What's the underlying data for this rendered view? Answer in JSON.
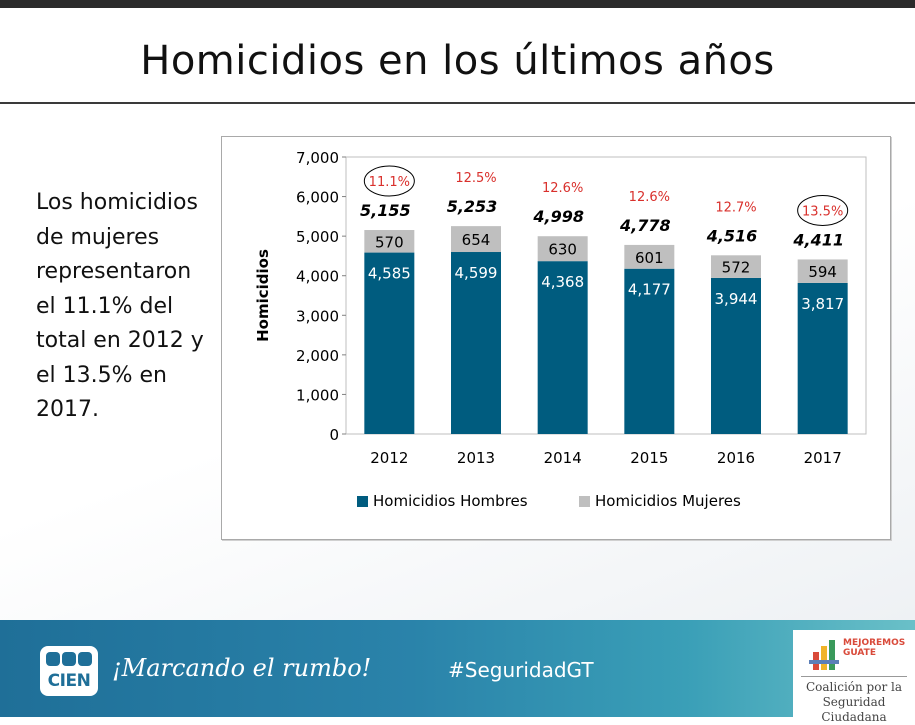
{
  "slide": {
    "title": "Homicidios en los últimos años",
    "side_text": "Los homicidios de mujeres representaron el 11.1% del total en 2012 y el 13.5% en 2017."
  },
  "chart_data": {
    "type": "bar",
    "stacked": true,
    "title": "",
    "ylabel": "Homicidios",
    "xlabel": "",
    "ylim": [
      0,
      7000
    ],
    "yticks": [
      "0",
      "1,000",
      "2,000",
      "3,000",
      "4,000",
      "5,000",
      "6,000",
      "7,000"
    ],
    "categories": [
      "2012",
      "2013",
      "2014",
      "2015",
      "2016",
      "2017"
    ],
    "series": [
      {
        "name": "Homicidios Hombres",
        "color": "#005c7f",
        "values": [
          4585,
          4599,
          4368,
          4177,
          3944,
          3817
        ],
        "labels": [
          "4,585",
          "4,599",
          "4,368",
          "4,177",
          "3,944",
          "3,817"
        ]
      },
      {
        "name": "Homicidios Mujeres",
        "color": "#bfbfbf",
        "values": [
          570,
          654,
          630,
          601,
          572,
          594
        ],
        "labels": [
          "570",
          "654",
          "630",
          "601",
          "572",
          "594"
        ]
      }
    ],
    "totals": [
      "5,155",
      "5,253",
      "4,998",
      "4,778",
      "4,516",
      "4,411"
    ],
    "female_share": [
      "11.1%",
      "12.5%",
      "12.6%",
      "12.6%",
      "12.7%",
      "13.5%"
    ],
    "circled": [
      true,
      false,
      false,
      false,
      false,
      true
    ],
    "percent_color": "#d9302c",
    "legend_position": "bottom"
  },
  "footer": {
    "logo_text": "CIEN",
    "slogan": "¡Marcando el rumbo!",
    "hashtag": "#SeguridadGT",
    "partner_tag": "MEJOREMOS GUATE",
    "partner_name": "Coalición por la Seguridad Ciudadana"
  },
  "colors": {
    "footer_blue": "#1f6f98",
    "bar_men": "#005c7f",
    "bar_women": "#bfbfbf"
  }
}
